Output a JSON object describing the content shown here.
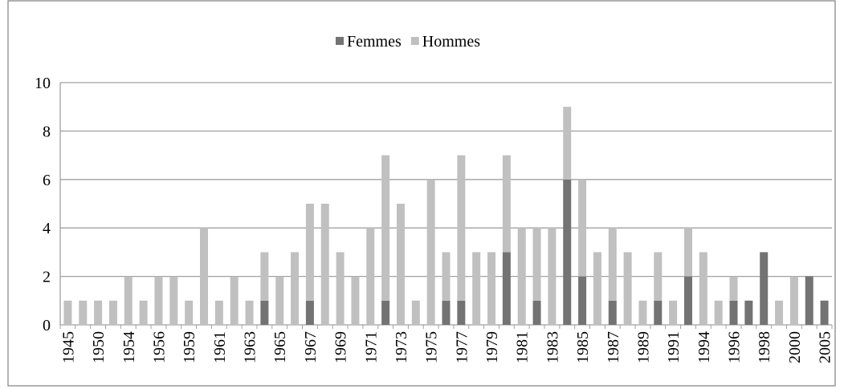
{
  "chart_data": {
    "type": "stacked_bar",
    "categories": [
      "1945",
      null,
      "1950",
      null,
      "1954",
      null,
      "1956",
      null,
      "1959",
      null,
      "1961",
      null,
      "1963",
      null,
      "1965",
      null,
      "1967",
      null,
      "1969",
      null,
      "1971",
      null,
      "1973",
      null,
      "1975",
      null,
      "1977",
      null,
      "1979",
      null,
      "1981",
      null,
      "1983",
      null,
      "1985",
      null,
      "1987",
      null,
      "1989",
      null,
      "1991",
      null,
      "1994",
      null,
      "1996",
      null,
      "1998",
      null,
      "2000",
      null,
      "2005"
    ],
    "series": [
      {
        "name": "Femmes",
        "color": "#737373",
        "values": [
          0,
          0,
          0,
          0,
          0,
          0,
          0,
          0,
          0,
          0,
          0,
          0,
          0,
          1,
          0,
          0,
          1,
          0,
          0,
          0,
          0,
          1,
          0,
          0,
          0,
          1,
          1,
          0,
          0,
          3,
          0,
          1,
          0,
          6,
          2,
          0,
          1,
          0,
          0,
          1,
          0,
          2,
          0,
          0,
          1,
          1,
          3,
          0,
          0,
          2,
          1
        ]
      },
      {
        "name": "Hommes",
        "color": "#c0c0c0",
        "values": [
          1,
          1,
          1,
          1,
          2,
          1,
          2,
          2,
          1,
          4,
          1,
          2,
          1,
          2,
          2,
          3,
          4,
          5,
          3,
          2,
          4,
          6,
          5,
          1,
          6,
          2,
          6,
          3,
          3,
          4,
          4,
          3,
          4,
          3,
          4,
          3,
          3,
          3,
          1,
          2,
          1,
          2,
          3,
          1,
          1,
          0,
          0,
          1,
          2,
          0,
          0
        ]
      }
    ],
    "ylim": [
      0,
      10
    ],
    "yticks": [
      0,
      2,
      4,
      6,
      8,
      10
    ],
    "grid": true,
    "legend": "top"
  }
}
